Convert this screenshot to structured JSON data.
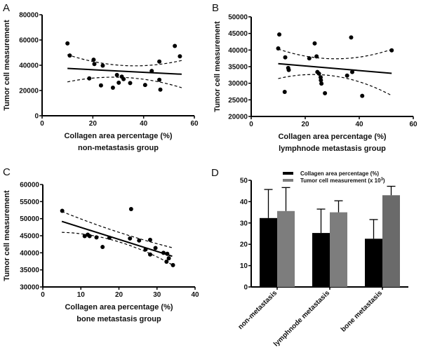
{
  "chart_data": [
    {
      "panel": "A",
      "type": "scatter",
      "xlabel": "Collagen area percentage (%)",
      "subtitle": "non-metastasis group",
      "ylabel": "Tumor cell measurement",
      "xlim": [
        0,
        60
      ],
      "ylim": [
        0,
        80000
      ],
      "xticks": [
        "0",
        "20",
        "40",
        "60"
      ],
      "yticks": [
        "0",
        "20000",
        "40000",
        "60000",
        "80000"
      ],
      "points": [
        [
          10,
          57300
        ],
        [
          10.9,
          47700
        ],
        [
          20.3,
          44400
        ],
        [
          20.6,
          41000
        ],
        [
          23.9,
          39700
        ],
        [
          18.6,
          29600
        ],
        [
          23.2,
          24000
        ],
        [
          27.9,
          22200
        ],
        [
          29.5,
          32300
        ],
        [
          30.2,
          26200
        ],
        [
          31.4,
          31000
        ],
        [
          32.1,
          29000
        ],
        [
          34.7,
          25900
        ],
        [
          40.6,
          24400
        ],
        [
          43.2,
          35500
        ],
        [
          46.2,
          42900
        ],
        [
          46.2,
          28500
        ],
        [
          46.6,
          20700
        ],
        [
          52.3,
          55300
        ],
        [
          54.3,
          47100
        ]
      ],
      "fit": [
        [
          10,
          37500
        ],
        [
          55,
          32900
        ]
      ],
      "upper_ci": [
        [
          10,
          48400
        ],
        [
          33,
          39700
        ],
        [
          55,
          43800
        ]
      ],
      "lower_ci": [
        [
          10,
          26800
        ],
        [
          30,
          30500
        ],
        [
          55,
          22200
        ]
      ]
    },
    {
      "panel": "B",
      "type": "scatter",
      "xlabel": "Collagen area percentage (%)",
      "subtitle": "lymphnode metastasis group",
      "ylabel": "Tumor cell measurement",
      "xlim": [
        0,
        60
      ],
      "ylim": [
        20000,
        50000
      ],
      "xticks": [
        "0",
        "20",
        "40",
        "60"
      ],
      "yticks": [
        "20000",
        "25000",
        "30000",
        "35000",
        "40000",
        "45000",
        "50000"
      ],
      "points": [
        [
          10.4,
          44700
        ],
        [
          10,
          40500
        ],
        [
          12.6,
          37800
        ],
        [
          12.4,
          27400
        ],
        [
          13.7,
          34600
        ],
        [
          13.9,
          34000
        ],
        [
          21.5,
          37500
        ],
        [
          23.5,
          42000
        ],
        [
          24.2,
          38100
        ],
        [
          24.5,
          33400
        ],
        [
          25.1,
          32900
        ],
        [
          25.7,
          31800
        ],
        [
          25.8,
          30900
        ],
        [
          26,
          29900
        ],
        [
          27.3,
          27000
        ],
        [
          35.5,
          32300
        ],
        [
          37,
          43800
        ],
        [
          37.4,
          33400
        ],
        [
          41.1,
          26200
        ],
        [
          52,
          39900
        ]
      ],
      "fit": [
        [
          10,
          35900
        ],
        [
          52,
          33000
        ]
      ],
      "upper_ci": [
        [
          10,
          40300
        ],
        [
          29,
          37400
        ],
        [
          52,
          40200
        ]
      ],
      "lower_ci": [
        [
          10,
          31400
        ],
        [
          25,
          32600
        ],
        [
          52,
          26300
        ]
      ]
    },
    {
      "panel": "C",
      "type": "scatter",
      "xlabel": "Collagen area percentage (%)",
      "subtitle": "bone metastasis group",
      "ylabel": "Tumor cell measurement",
      "xlim": [
        0,
        40
      ],
      "ylim": [
        30000,
        60000
      ],
      "xticks": [
        "0",
        "10",
        "20",
        "30",
        "40"
      ],
      "yticks": [
        "30000",
        "35000",
        "40000",
        "45000",
        "50000",
        "55000",
        "60000"
      ],
      "points": [
        [
          5.1,
          52300
        ],
        [
          11,
          44900
        ],
        [
          11.8,
          45300
        ],
        [
          12.3,
          44900
        ],
        [
          14.1,
          44500
        ],
        [
          15.7,
          41700
        ],
        [
          17.5,
          44400
        ],
        [
          22.9,
          44200
        ],
        [
          23.2,
          52800
        ],
        [
          25.3,
          43600
        ],
        [
          27,
          41000
        ],
        [
          28.2,
          43800
        ],
        [
          28.2,
          39500
        ],
        [
          29.6,
          41400
        ],
        [
          31.7,
          40000
        ],
        [
          32.7,
          39700
        ],
        [
          33.1,
          38400
        ],
        [
          32.5,
          37400
        ],
        [
          34.2,
          36400
        ]
      ],
      "fit": [
        [
          5,
          49200
        ],
        [
          34,
          39000
        ]
      ],
      "upper_ci": [
        [
          5,
          52100
        ],
        [
          20,
          46000
        ],
        [
          34,
          41500
        ]
      ],
      "lower_ci": [
        [
          5,
          46000
        ],
        [
          20,
          43200
        ],
        [
          34,
          36500
        ]
      ]
    },
    {
      "panel": "D",
      "type": "bar",
      "categories": [
        "non-metastasis",
        "lymphnode metastasis",
        "bone metastasis"
      ],
      "ylim": [
        0,
        50
      ],
      "yticks": [
        "0",
        "10",
        "20",
        "30",
        "40",
        "50"
      ],
      "series": [
        {
          "name": "Collagen area percentage (%)",
          "values": [
            32.3,
            25.3,
            22.6
          ],
          "error_top": [
            45.7,
            36.5,
            31.6
          ],
          "color": "#000000"
        },
        {
          "name_prefix": "Tumor cell measurement (x 10",
          "name_sup": "3",
          "name_suffix": ")",
          "values": [
            35.6,
            35.0,
            43.0
          ],
          "error_top": [
            46.6,
            40.4,
            47.2
          ],
          "colors": [
            "#7d7d7d",
            "#7d7d7d",
            "#6a6a6a"
          ]
        }
      ]
    }
  ]
}
